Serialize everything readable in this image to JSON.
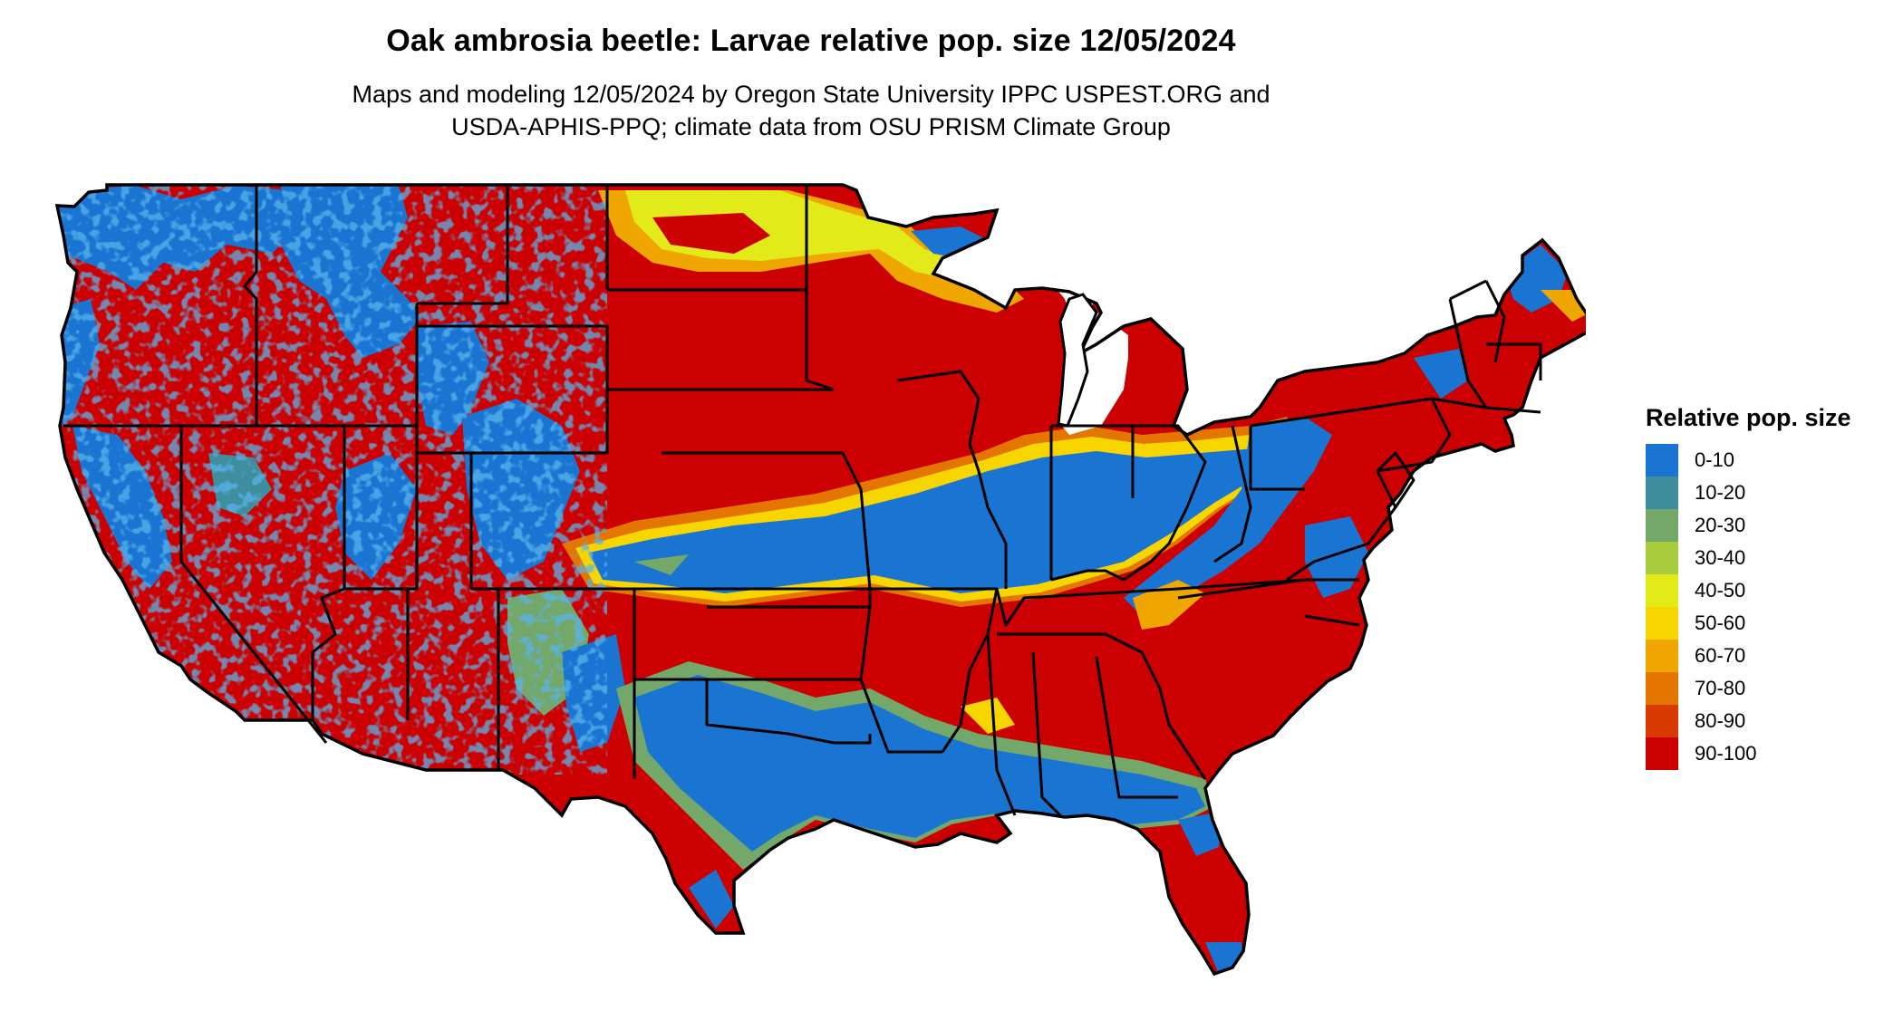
{
  "title": "Oak ambrosia beetle: Larvae relative pop. size 12/05/2024",
  "subtitle_line1": "Maps and modeling 12/05/2024 by Oregon State University IPPC USPEST.ORG and",
  "subtitle_line2": "USDA-APHIS-PPQ; climate data from OSU PRISM Climate Group",
  "legend": {
    "title": "Relative pop. size",
    "items": [
      {
        "label": "0-10",
        "color": "#1a74d2"
      },
      {
        "label": "10-20",
        "color": "#3e8e9e"
      },
      {
        "label": "20-30",
        "color": "#74a86a"
      },
      {
        "label": "30-40",
        "color": "#a8cc3e"
      },
      {
        "label": "40-50",
        "color": "#e2ea1a"
      },
      {
        "label": "50-60",
        "color": "#f7d600"
      },
      {
        "label": "60-70",
        "color": "#f0a600"
      },
      {
        "label": "70-80",
        "color": "#e47600"
      },
      {
        "label": "80-90",
        "color": "#d83a00"
      },
      {
        "label": "90-100",
        "color": "#cc0000"
      }
    ]
  }
}
